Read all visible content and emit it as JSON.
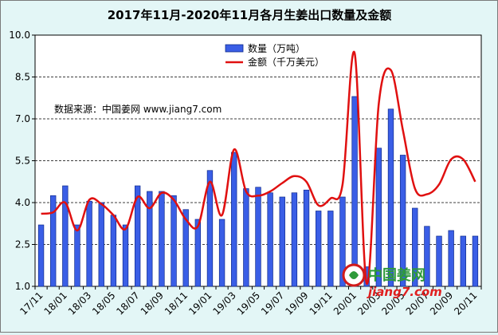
{
  "chart_data": {
    "type": "bar+line",
    "title": "2017年11月-2020年11月各月生姜出口数量及金额",
    "xlabel": "",
    "ylabel": "",
    "ylim": [
      1.0,
      10.0
    ],
    "yticks": [
      "1.0",
      "2.5",
      "4.0",
      "5.5",
      "7.0",
      "8.5",
      "10.0"
    ],
    "grid": true,
    "legend_placement": "top-center",
    "x_tick_labels": [
      "17/11",
      "18/01",
      "18/03",
      "18/05",
      "18/07",
      "18/09",
      "18/11",
      "19/01",
      "19/03",
      "19/05",
      "19/07",
      "19/09",
      "19/11",
      "20/01",
      "20/03",
      "20/05",
      "20/07",
      "20/09",
      "20/11"
    ],
    "categories": [
      "17/11",
      "17/12",
      "18/01",
      "18/02",
      "18/03",
      "18/04",
      "18/05",
      "18/06",
      "18/07",
      "18/08",
      "18/09",
      "18/10",
      "18/11",
      "18/12",
      "19/01",
      "19/02",
      "19/03",
      "19/04",
      "19/05",
      "19/06",
      "19/07",
      "19/08",
      "19/09",
      "19/10",
      "19/11",
      "19/12",
      "20/01",
      "20/02",
      "20/03",
      "20/04",
      "20/05",
      "20/06",
      "20/07",
      "20/08",
      "20/09",
      "20/10",
      "20/11"
    ],
    "series": [
      {
        "name": "数量（万吨）",
        "kind": "bar",
        "color": "#3a5ee6",
        "values": [
          3.2,
          4.25,
          4.6,
          3.2,
          4.05,
          4.0,
          3.55,
          3.2,
          4.6,
          4.4,
          4.4,
          4.25,
          3.75,
          3.4,
          5.15,
          3.4,
          5.8,
          4.5,
          4.55,
          4.35,
          4.2,
          4.35,
          4.45,
          3.7,
          3.7,
          4.2,
          7.8,
          1.7,
          5.95,
          7.35,
          5.7,
          3.8,
          3.15,
          2.8,
          3.0,
          2.8,
          2.8
        ]
      },
      {
        "name": "金额（千万美元）",
        "kind": "line",
        "color": "#e01010",
        "values": [
          3.6,
          3.65,
          4.0,
          3.0,
          4.1,
          3.95,
          3.55,
          3.05,
          4.2,
          3.8,
          4.35,
          4.1,
          3.4,
          3.15,
          4.75,
          3.55,
          5.9,
          4.4,
          4.25,
          4.4,
          4.7,
          4.95,
          4.75,
          3.9,
          4.15,
          4.65,
          9.35,
          1.1,
          7.55,
          8.75,
          6.6,
          4.5,
          4.3,
          4.65,
          5.55,
          5.55,
          4.75
        ]
      }
    ],
    "annotation": "数据来源：中国姜网 www.jiang7.com",
    "watermark": {
      "logo_text": "中国姜网",
      "url": "jiang7.com"
    }
  }
}
